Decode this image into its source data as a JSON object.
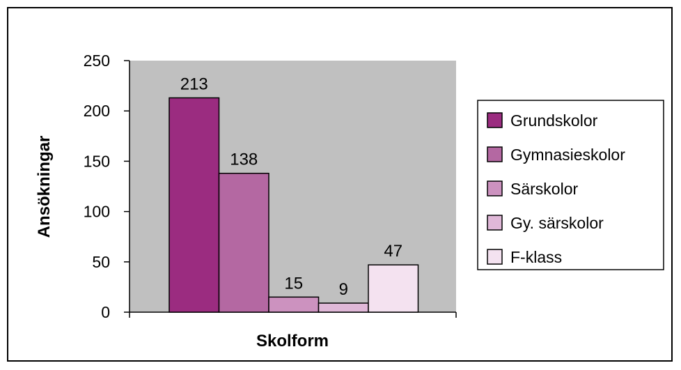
{
  "chart_data": {
    "type": "bar",
    "xlabel": "Skolform",
    "ylabel": "Ansökningar",
    "ylim": [
      0,
      250
    ],
    "yticks": [
      "0",
      "50",
      "100",
      "150",
      "200",
      "250"
    ],
    "series": [
      {
        "name": "Grundskolor",
        "value": 213,
        "color": "#9b2c80"
      },
      {
        "name": "Gymnasieskolor",
        "value": 138,
        "color": "#b468a2"
      },
      {
        "name": "Särskolor",
        "value": 15,
        "color": "#cc92bf"
      },
      {
        "name": "Gy. särskolor",
        "value": 9,
        "color": "#e0b8d8"
      },
      {
        "name": "F-klass",
        "value": 47,
        "color": "#f4e2f0"
      }
    ],
    "plot_background": "#c0c0c0",
    "legend_position": "right",
    "grid": false
  }
}
